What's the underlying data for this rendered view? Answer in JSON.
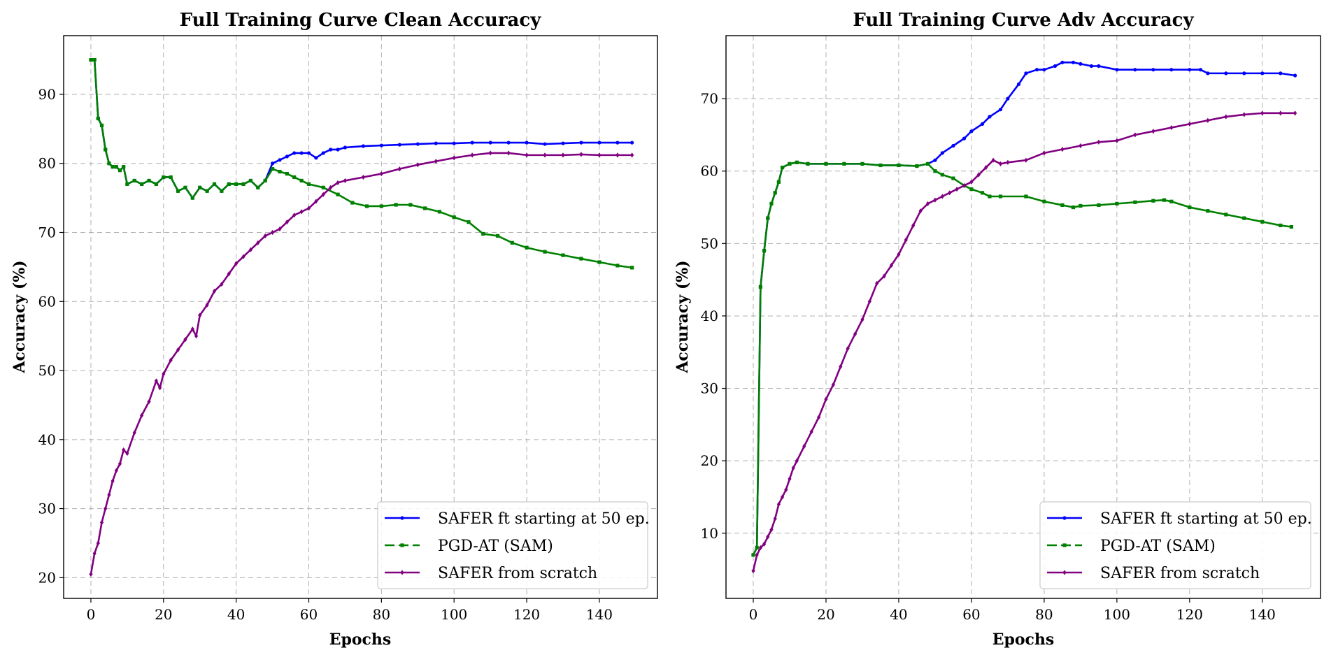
{
  "chart_data": [
    {
      "type": "line",
      "title": "Full Training Curve Clean Accuracy",
      "xlabel": "Epochs",
      "ylabel": "Accuracy (%)",
      "xlim": [
        -7.5,
        156
      ],
      "ylim": [
        17,
        98.5
      ],
      "xticks": [
        0,
        20,
        40,
        60,
        80,
        100,
        120,
        140
      ],
      "yticks": [
        20,
        30,
        40,
        50,
        60,
        70,
        80,
        90
      ],
      "grid": true,
      "legend_position": "lower-right",
      "series": [
        {
          "name": "SAFER ft starting at 50 ep.",
          "color": "#0000ff",
          "marker": "circle",
          "x": [
            0,
            1,
            2,
            3,
            4,
            5,
            6,
            7,
            8,
            9,
            10,
            12,
            14,
            16,
            18,
            20,
            22,
            24,
            26,
            28,
            30,
            32,
            34,
            36,
            38,
            40,
            42,
            44,
            46,
            48,
            50,
            52,
            54,
            56,
            58,
            60,
            62,
            64,
            66,
            68,
            70,
            75,
            80,
            85,
            90,
            95,
            100,
            105,
            110,
            115,
            120,
            125,
            130,
            135,
            140,
            145,
            149
          ],
          "y": [
            95,
            95,
            86.5,
            85.5,
            82,
            80,
            79.5,
            79.5,
            79,
            79.5,
            77,
            77.5,
            77,
            77.5,
            77,
            78,
            78,
            76,
            76.5,
            75,
            76.5,
            76,
            77,
            76,
            77,
            77,
            77,
            77.5,
            76.5,
            77.5,
            80,
            80.5,
            81,
            81.5,
            81.5,
            81.5,
            80.8,
            81.5,
            82,
            82,
            82.3,
            82.5,
            82.6,
            82.7,
            82.8,
            82.9,
            82.9,
            83,
            83,
            83,
            83,
            82.8,
            82.9,
            83,
            83,
            83,
            83
          ]
        },
        {
          "name": "PGD-AT (SAM)",
          "color": "#008000",
          "marker": "square",
          "x": [
            0,
            1,
            2,
            3,
            4,
            5,
            6,
            7,
            8,
            9,
            10,
            12,
            14,
            16,
            18,
            20,
            22,
            24,
            26,
            28,
            30,
            32,
            34,
            36,
            38,
            40,
            42,
            44,
            46,
            48,
            50,
            52,
            54,
            56,
            58,
            60,
            64,
            68,
            72,
            76,
            80,
            84,
            88,
            92,
            96,
            100,
            104,
            108,
            112,
            116,
            120,
            125,
            130,
            135,
            140,
            145,
            149
          ],
          "y": [
            95,
            95,
            86.5,
            85.5,
            82,
            80,
            79.5,
            79.5,
            79,
            79.5,
            77,
            77.5,
            77,
            77.5,
            77,
            78,
            78,
            76,
            76.5,
            75,
            76.5,
            76,
            77,
            76,
            77,
            77,
            77,
            77.5,
            76.5,
            77.5,
            79.2,
            78.8,
            78.5,
            78,
            77.5,
            77,
            76.5,
            75.5,
            74.3,
            73.8,
            73.8,
            74,
            74,
            73.5,
            73,
            72.2,
            71.5,
            69.8,
            69.5,
            68.5,
            67.8,
            67.2,
            66.7,
            66.2,
            65.7,
            65.2,
            64.9
          ]
        },
        {
          "name": "SAFER from scratch",
          "color": "#800080",
          "marker": "diamond",
          "x": [
            0,
            1,
            2,
            3,
            4,
            5,
            6,
            7,
            8,
            9,
            10,
            12,
            14,
            16,
            18,
            19,
            20,
            22,
            24,
            26,
            28,
            29,
            30,
            32,
            34,
            36,
            38,
            40,
            42,
            44,
            46,
            48,
            50,
            52,
            54,
            56,
            58,
            60,
            62,
            64,
            66,
            68,
            70,
            75,
            80,
            85,
            90,
            95,
            100,
            105,
            110,
            115,
            120,
            125,
            130,
            135,
            140,
            145,
            149
          ],
          "y": [
            20.5,
            23.5,
            25,
            28,
            30,
            32,
            34,
            35.5,
            36.5,
            38.5,
            38,
            41,
            43.5,
            45.5,
            48.5,
            47.5,
            49.5,
            51.5,
            53,
            54.5,
            56,
            55,
            58,
            59.5,
            61.5,
            62.5,
            64,
            65.5,
            66.5,
            67.5,
            68.5,
            69.5,
            70,
            70.5,
            71.5,
            72.5,
            73,
            73.5,
            74.5,
            75.5,
            76.5,
            77.2,
            77.5,
            78,
            78.5,
            79.2,
            79.8,
            80.3,
            80.8,
            81.2,
            81.5,
            81.5,
            81.2,
            81.2,
            81.2,
            81.3,
            81.2,
            81.2,
            81.2
          ]
        }
      ]
    },
    {
      "type": "line",
      "title": "Full Training Curve Adv Accuracy",
      "xlabel": "Epochs",
      "ylabel": "Accuracy (%)",
      "xlim": [
        -7.5,
        156
      ],
      "ylim": [
        1,
        78.7
      ],
      "xticks": [
        0,
        20,
        40,
        60,
        80,
        100,
        120,
        140
      ],
      "yticks": [
        10,
        20,
        30,
        40,
        50,
        60,
        70
      ],
      "grid": true,
      "legend_position": "lower-right",
      "series": [
        {
          "name": "SAFER ft starting at 50 ep.",
          "color": "#0000ff",
          "marker": "circle",
          "x": [
            0,
            1,
            2,
            3,
            4,
            5,
            6,
            7,
            8,
            10,
            12,
            15,
            20,
            25,
            30,
            35,
            40,
            45,
            48,
            50,
            52,
            55,
            58,
            60,
            63,
            65,
            68,
            70,
            73,
            75,
            78,
            80,
            83,
            85,
            88,
            90,
            93,
            95,
            100,
            105,
            110,
            115,
            120,
            123,
            125,
            130,
            135,
            140,
            145,
            149
          ],
          "y": [
            7,
            8,
            44,
            49,
            53.5,
            55.5,
            57,
            58.5,
            60.5,
            61,
            61.2,
            61,
            61,
            61,
            61,
            60.8,
            60.8,
            60.7,
            61,
            61.5,
            62.5,
            63.5,
            64.5,
            65.5,
            66.5,
            67.5,
            68.5,
            70,
            72,
            73.5,
            74,
            74,
            74.5,
            75,
            75,
            74.8,
            74.5,
            74.5,
            74,
            74,
            74,
            74,
            74,
            74,
            73.5,
            73.5,
            73.5,
            73.5,
            73.5,
            73.2
          ]
        },
        {
          "name": "PGD-AT (SAM)",
          "color": "#008000",
          "marker": "square",
          "x": [
            0,
            1,
            2,
            3,
            4,
            5,
            6,
            7,
            8,
            10,
            12,
            15,
            20,
            25,
            30,
            35,
            40,
            45,
            48,
            50,
            52,
            55,
            58,
            60,
            63,
            65,
            68,
            75,
            80,
            85,
            88,
            90,
            95,
            100,
            105,
            110,
            113,
            115,
            120,
            125,
            130,
            135,
            140,
            145,
            148
          ],
          "y": [
            7,
            8,
            44,
            49,
            53.5,
            55.5,
            57,
            58.5,
            60.5,
            61,
            61.2,
            61,
            61,
            61,
            61,
            60.8,
            60.8,
            60.7,
            61,
            60,
            59.5,
            59,
            58,
            57.5,
            57,
            56.5,
            56.5,
            56.5,
            55.8,
            55.3,
            55,
            55.2,
            55.3,
            55.5,
            55.7,
            55.9,
            56,
            55.8,
            55,
            54.5,
            54,
            53.5,
            53,
            52.5,
            52.3
          ]
        },
        {
          "name": "SAFER from scratch",
          "color": "#800080",
          "marker": "diamond",
          "x": [
            0,
            1,
            2,
            3,
            4,
            5,
            6,
            7,
            8,
            9,
            10,
            11,
            12,
            14,
            16,
            18,
            20,
            22,
            24,
            26,
            28,
            30,
            32,
            34,
            36,
            38,
            40,
            42,
            44,
            46,
            48,
            50,
            52,
            54,
            56,
            58,
            60,
            62,
            64,
            66,
            68,
            70,
            75,
            80,
            85,
            90,
            95,
            100,
            105,
            110,
            115,
            120,
            125,
            130,
            135,
            140,
            145,
            149
          ],
          "y": [
            4.8,
            7,
            8,
            8.5,
            9.5,
            10.5,
            12,
            14,
            15,
            16,
            17.5,
            19,
            20,
            22,
            24,
            26,
            28.5,
            30.5,
            33,
            35.5,
            37.5,
            39.5,
            42,
            44.5,
            45.5,
            47,
            48.5,
            50.5,
            52.5,
            54.5,
            55.5,
            56,
            56.5,
            57,
            57.5,
            58,
            58.5,
            59.5,
            60.5,
            61.5,
            61,
            61.2,
            61.5,
            62.5,
            63,
            63.5,
            64,
            64.2,
            65,
            65.5,
            66,
            66.5,
            67,
            67.5,
            67.8,
            68,
            68,
            68
          ]
        }
      ]
    }
  ]
}
